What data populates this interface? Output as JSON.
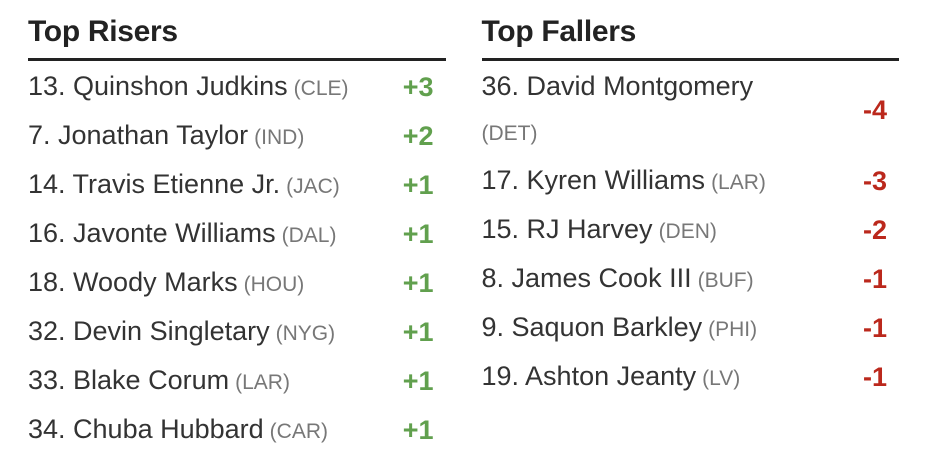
{
  "risers": {
    "title": "Top Risers",
    "rows": [
      {
        "name": "13. Quinshon Judkins",
        "team": "(CLE)",
        "delta": "+3"
      },
      {
        "name": "7. Jonathan Taylor",
        "team": "(IND)",
        "delta": "+2"
      },
      {
        "name": "14. Travis Etienne Jr.",
        "team": "(JAC)",
        "delta": "+1"
      },
      {
        "name": "16. Javonte Williams",
        "team": "(DAL)",
        "delta": "+1"
      },
      {
        "name": "18. Woody Marks",
        "team": "(HOU)",
        "delta": "+1"
      },
      {
        "name": "32. Devin Singletary",
        "team": "(NYG)",
        "delta": "+1"
      },
      {
        "name": "33. Blake Corum",
        "team": "(LAR)",
        "delta": "+1"
      },
      {
        "name": "34. Chuba Hubbard",
        "team": "(CAR)",
        "delta": "+1"
      }
    ]
  },
  "fallers": {
    "title": "Top Fallers",
    "rows": [
      {
        "name": "36. David Montgomery",
        "team": "(DET)",
        "delta": "-4"
      },
      {
        "name": "17. Kyren Williams",
        "team": "(LAR)",
        "delta": "-3"
      },
      {
        "name": "15. RJ Harvey",
        "team": "(DEN)",
        "delta": "-2"
      },
      {
        "name": "8. James Cook III",
        "team": "(BUF)",
        "delta": "-1"
      },
      {
        "name": "9. Saquon Barkley",
        "team": "(PHI)",
        "delta": "-1"
      },
      {
        "name": "19. Ashton Jeanty",
        "team": "(LV)",
        "delta": "-1"
      }
    ]
  },
  "colors": {
    "riser_green": "#61a04e",
    "faller_red": "#bb281c",
    "heading": "#222222",
    "player_text": "#333333",
    "team_muted": "#777777"
  }
}
